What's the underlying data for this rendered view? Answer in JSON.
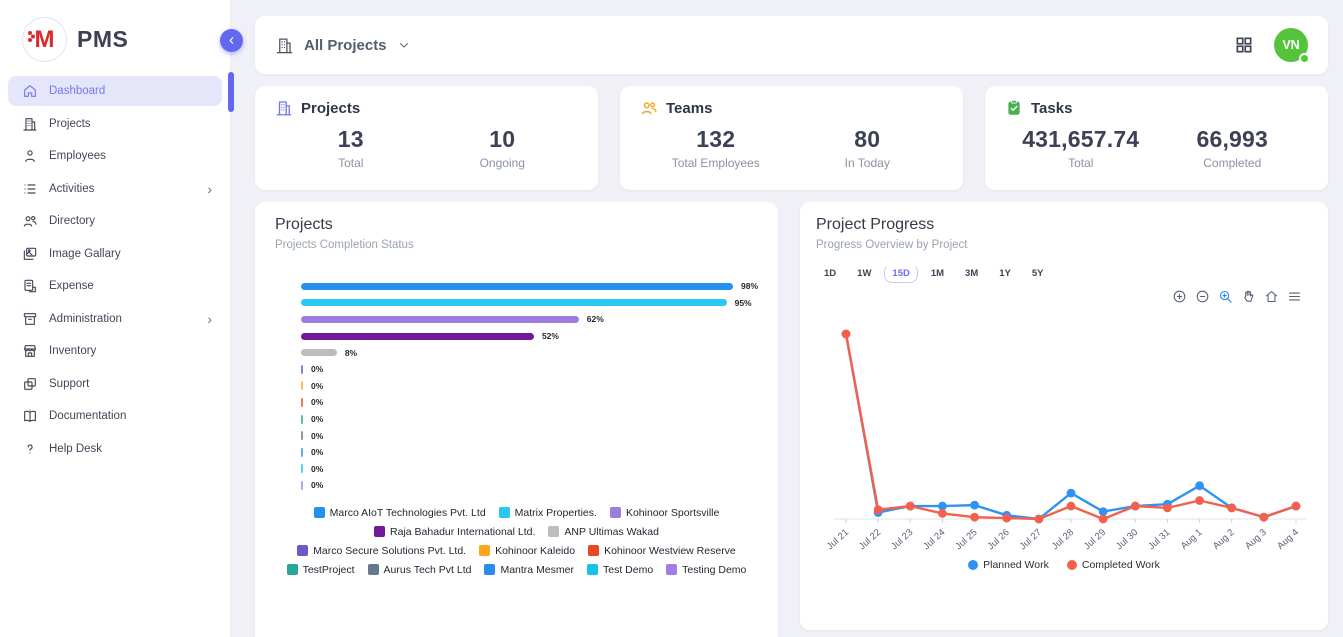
{
  "app": {
    "name": "PMS",
    "logo_letter": "M",
    "accent_color": "#6467f0"
  },
  "sidebar": {
    "items": [
      {
        "label": "Dashboard",
        "icon": "home-icon",
        "active": true,
        "expandable": false
      },
      {
        "label": "Projects",
        "icon": "building-icon",
        "active": false,
        "expandable": false
      },
      {
        "label": "Employees",
        "icon": "person-icon",
        "active": false,
        "expandable": false
      },
      {
        "label": "Activities",
        "icon": "list-icon",
        "active": false,
        "expandable": true
      },
      {
        "label": "Directory",
        "icon": "people-icon",
        "active": false,
        "expandable": false
      },
      {
        "label": "Image Gallary",
        "icon": "image-icon",
        "active": false,
        "expandable": false
      },
      {
        "label": "Expense",
        "icon": "receipt-icon",
        "active": false,
        "expandable": false
      },
      {
        "label": "Administration",
        "icon": "archive-icon",
        "active": false,
        "expandable": true
      },
      {
        "label": "Inventory",
        "icon": "store-icon",
        "active": false,
        "expandable": false
      },
      {
        "label": "Support",
        "icon": "copy-icon",
        "active": false,
        "expandable": false
      },
      {
        "label": "Documentation",
        "icon": "book-icon",
        "active": false,
        "expandable": false
      },
      {
        "label": "Help Desk",
        "icon": "question-icon",
        "active": false,
        "expandable": false
      }
    ]
  },
  "topbar": {
    "project_filter_label": "All Projects",
    "avatar_initials": "VN",
    "avatar_color": "#55c43b"
  },
  "stats": {
    "projects": {
      "title": "Projects",
      "icon_color": "#7577ee",
      "value1": "13",
      "label1": "Total",
      "value2": "10",
      "label2": "Ongoing"
    },
    "teams": {
      "title": "Teams",
      "icon_color": "#f5a623",
      "value1": "132",
      "label1": "Total Employees",
      "value2": "80",
      "label2": "In Today"
    },
    "tasks": {
      "title": "Tasks",
      "icon_color": "#4caf50",
      "value1": "431,657.74",
      "label1": "Total",
      "value2": "66,993",
      "label2": "Completed"
    }
  },
  "projects_chart": {
    "title": "Projects",
    "subtitle": "Projects Completion Status"
  },
  "progress_chart": {
    "title": "Project Progress",
    "subtitle": "Progress Overview by Project",
    "ranges": [
      "1D",
      "1W",
      "15D",
      "1M",
      "3M",
      "1Y",
      "5Y"
    ],
    "active_range": "15D",
    "toolbar_icons": [
      "zoom-in-icon",
      "zoom-out-icon",
      "selection-zoom-icon",
      "pan-icon",
      "reset-home-icon",
      "menu-icon"
    ],
    "legend": [
      "Planned Work",
      "Completed Work"
    ]
  },
  "chart_data": [
    {
      "type": "bar",
      "orientation": "horizontal",
      "title": "Projects",
      "subtitle": "Projects Completion Status",
      "unit": "%",
      "xlim": [
        0,
        100
      ],
      "categories": [
        "Marco AIoT Technologies Pvt. Ltd",
        "Matrix Properties.",
        "Kohinoor Sportsville",
        "Raja Bahadur International Ltd.",
        "ANP Ultimas Wakad",
        "Marco Secure Solutions Pvt. Ltd.",
        "Kohinoor Kaleido",
        "Kohinoor Westview Reserve",
        "TestProject",
        "Aurus Tech Pvt Ltd",
        "Mantra Mesmer",
        "Test Demo",
        "Testing Demo"
      ],
      "values": [
        98,
        95,
        62,
        52,
        8,
        0,
        0,
        0,
        0,
        0,
        0,
        0,
        0
      ],
      "colors": [
        "#2490ef",
        "#29c7f2",
        "#9c7ddb",
        "#71189d",
        "#bdbdbd",
        "#6a5cc8",
        "#ffa718",
        "#e8491f",
        "#29a695",
        "#67798c",
        "#2d8bef",
        "#17c2e8",
        "#a37ce5"
      ],
      "legend_position": "bottom"
    },
    {
      "type": "line",
      "title": "Project Progress",
      "subtitle": "Progress Overview by Project",
      "categories": [
        "Jul 21",
        "Jul 22",
        "Jul 23",
        "Jul 24",
        "Jul 25",
        "Jul 26",
        "Jul 27",
        "Jul 28",
        "Jul 29",
        "Jul 30",
        "Jul 31",
        "Aug 1",
        "Aug 2",
        "Aug 3",
        "Aug 4"
      ],
      "series": [
        {
          "name": "Planned Work",
          "color": "#2e93f5",
          "values": [
            100,
            3.5,
            7,
            7,
            7.5,
            2,
            0,
            14,
            4,
            7,
            8,
            18,
            6,
            1,
            7
          ]
        },
        {
          "name": "Completed Work",
          "color": "#f4604c",
          "values": [
            100,
            5,
            7,
            3,
            1,
            0.5,
            0,
            7,
            0,
            7,
            6,
            10,
            6,
            1,
            7
          ]
        }
      ],
      "ylim": [
        0,
        100
      ],
      "y_axis_visible": false,
      "grid": false,
      "legend_position": "bottom"
    }
  ]
}
